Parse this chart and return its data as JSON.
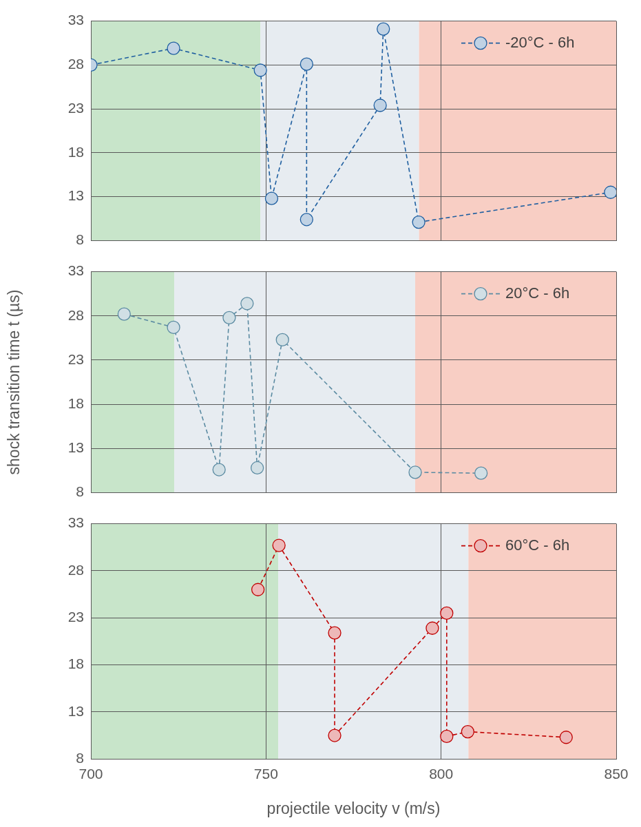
{
  "chart_data": [
    {
      "type": "line",
      "xlim": [
        700,
        850
      ],
      "xticks": [
        700,
        750,
        800,
        850
      ],
      "ylim": [
        8,
        33
      ],
      "yticks": [
        8,
        13,
        18,
        23,
        28,
        33
      ],
      "grid": true,
      "legend": "top right",
      "marker": "circle",
      "line_style": "dashed",
      "tick_labels": "y",
      "bands": [
        {
          "axis": "x",
          "from": 700,
          "to": 748.4,
          "color": "#c8e5ca"
        },
        {
          "axis": "x",
          "from": 748.4,
          "to": 793.7,
          "color": "#e7ecf1"
        },
        {
          "axis": "x",
          "from": 793.7,
          "to": 850,
          "color": "#f8cec4"
        }
      ],
      "series": [
        {
          "name": "-20°C - 6h",
          "color": "#1f5fa0",
          "x": [
            700,
            723.6,
            748.4,
            751.6,
            761.6,
            761.6,
            782.6,
            783.5,
            793.6,
            848.4
          ],
          "values": [
            28,
            29.9,
            27.4,
            12.8,
            28.1,
            10.4,
            23.4,
            32.1,
            10.1,
            13.5
          ]
        }
      ]
    },
    {
      "type": "line",
      "xlim": [
        700,
        850
      ],
      "xticks": [
        700,
        750,
        800,
        850
      ],
      "ylim": [
        8,
        33
      ],
      "yticks": [
        8,
        13,
        18,
        23,
        28,
        33
      ],
      "grid": true,
      "legend": "top right",
      "marker": "circle",
      "line_style": "dashed",
      "tick_labels": "y",
      "ylabel": "shock transition time t (µs)",
      "bands": [
        {
          "axis": "x",
          "from": 700,
          "to": 723.8,
          "color": "#c8e5ca"
        },
        {
          "axis": "x",
          "from": 723.8,
          "to": 792.6,
          "color": "#e7ecf1"
        },
        {
          "axis": "x",
          "from": 792.6,
          "to": 850,
          "color": "#f8cec4"
        }
      ],
      "series": [
        {
          "name": "20°C - 6h",
          "color": "#5b8ba2",
          "x": [
            709.5,
            723.6,
            736.6,
            739.5,
            744.6,
            747.5,
            754.7,
            792.6,
            811.4
          ],
          "values": [
            28.2,
            26.7,
            10.6,
            27.8,
            29.4,
            10.8,
            25.3,
            10.3,
            10.2
          ]
        }
      ]
    },
    {
      "type": "line",
      "xlim": [
        700,
        850
      ],
      "xticks": [
        700,
        750,
        800,
        850
      ],
      "ylim": [
        8,
        33
      ],
      "yticks": [
        8,
        13,
        18,
        23,
        28,
        33
      ],
      "grid": true,
      "legend": "top right",
      "marker": "circle",
      "line_style": "dashed",
      "xlabel": "projectile velocity v (m/s)",
      "bands": [
        {
          "axis": "x",
          "from": 700,
          "to": 753.5,
          "color": "#c8e5ca"
        },
        {
          "axis": "x",
          "from": 753.5,
          "to": 807.8,
          "color": "#e7ecf1"
        },
        {
          "axis": "x",
          "from": 807.8,
          "to": 850,
          "color": "#f8cec4"
        }
      ],
      "series": [
        {
          "name": "60°C - 6h",
          "color": "#c00000",
          "x": [
            747.7,
            753.7,
            769.6,
            769.6,
            797.5,
            801.6,
            801.6,
            807.6,
            835.7
          ],
          "values": [
            26.0,
            30.7,
            21.4,
            10.5,
            21.9,
            23.5,
            10.4,
            10.9,
            10.3
          ]
        }
      ]
    }
  ]
}
